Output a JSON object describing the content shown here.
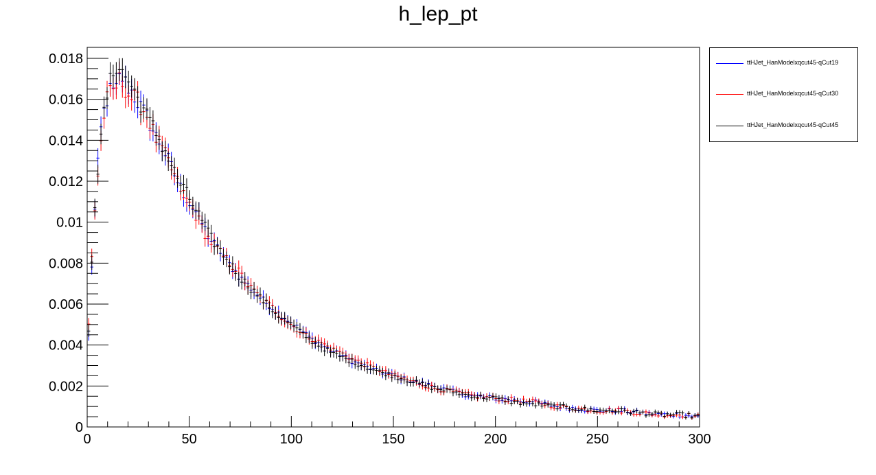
{
  "chart_data": {
    "type": "scatter",
    "title": "h_lep_pt",
    "xlabel": "",
    "ylabel": "",
    "xlim": [
      0,
      300
    ],
    "ylim": [
      0,
      0.0185
    ],
    "xticks": [
      "0",
      "50",
      "100",
      "150",
      "200",
      "250",
      "300"
    ],
    "yticks": [
      "0",
      "0.002",
      "0.004",
      "0.006",
      "0.008",
      "0.01",
      "0.012",
      "0.014",
      "0.016",
      "0.018"
    ],
    "grid": false,
    "legend_position": "top-right outside plot",
    "bin_width": 1.5,
    "x_range_bins": [
      0,
      300
    ],
    "series": [
      {
        "name": "ttHJet_HanModelxqcut45-qCut19",
        "color": "#0000ff",
        "profile": [
          [
            0,
            0.0027
          ],
          [
            1.5,
            0.0062
          ],
          [
            3,
            0.0096
          ],
          [
            4.5,
            0.0115
          ],
          [
            6,
            0.014
          ],
          [
            7.5,
            0.015
          ],
          [
            9,
            0.0158
          ],
          [
            10.5,
            0.0162
          ],
          [
            12,
            0.0166
          ],
          [
            13.5,
            0.0161
          ],
          [
            15,
            0.0168
          ],
          [
            16.5,
            0.0172
          ],
          [
            18,
            0.0169
          ],
          [
            21,
            0.0165
          ],
          [
            24,
            0.016
          ],
          [
            27,
            0.0155
          ],
          [
            30,
            0.015
          ],
          [
            33,
            0.0143
          ],
          [
            36,
            0.0138
          ],
          [
            39,
            0.0132
          ],
          [
            42,
            0.0125
          ],
          [
            45,
            0.0118
          ],
          [
            48,
            0.0113
          ],
          [
            51,
            0.0108
          ],
          [
            54,
            0.0104
          ],
          [
            57,
            0.0098
          ],
          [
            60,
            0.0092
          ],
          [
            63,
            0.0088
          ],
          [
            66,
            0.0085
          ],
          [
            69,
            0.008
          ],
          [
            72,
            0.0077
          ],
          [
            75,
            0.0073
          ],
          [
            78,
            0.007
          ],
          [
            81,
            0.0067
          ],
          [
            84,
            0.0064
          ],
          [
            87,
            0.0061
          ],
          [
            90,
            0.0059
          ],
          [
            93,
            0.0056
          ],
          [
            96,
            0.0054
          ],
          [
            100,
            0.0051
          ],
          [
            105,
            0.0047
          ],
          [
            110,
            0.0043
          ],
          [
            115,
            0.004
          ],
          [
            120,
            0.0037
          ],
          [
            125,
            0.0035
          ],
          [
            130,
            0.0032
          ],
          [
            135,
            0.003
          ],
          [
            140,
            0.0028
          ],
          [
            150,
            0.0025
          ],
          [
            160,
            0.0022
          ],
          [
            170,
            0.002
          ],
          [
            180,
            0.0017
          ],
          [
            190,
            0.0015
          ],
          [
            200,
            0.0014
          ],
          [
            210,
            0.0013
          ],
          [
            220,
            0.0012
          ],
          [
            230,
            0.001
          ],
          [
            240,
            0.0009
          ],
          [
            250,
            0.0008
          ],
          [
            260,
            0.0008
          ],
          [
            270,
            0.0007
          ],
          [
            280,
            0.0006
          ],
          [
            290,
            0.0006
          ],
          [
            300,
            0.0005
          ]
        ]
      },
      {
        "name": "ttHJet_HanModelxqcut45-qCut30",
        "color": "#ff0000",
        "profile": [
          [
            0,
            0.0028
          ],
          [
            1.5,
            0.0072
          ],
          [
            3,
            0.0096
          ],
          [
            4.5,
            0.0116
          ],
          [
            6,
            0.013
          ],
          [
            7.5,
            0.0148
          ],
          [
            9,
            0.0157
          ],
          [
            10.5,
            0.0162
          ],
          [
            12,
            0.0163
          ],
          [
            13.5,
            0.0165
          ],
          [
            15,
            0.0168
          ],
          [
            16.5,
            0.017
          ],
          [
            18,
            0.0167
          ],
          [
            21,
            0.0161
          ],
          [
            24,
            0.016
          ],
          [
            27,
            0.0156
          ],
          [
            30,
            0.0151
          ],
          [
            33,
            0.0142
          ],
          [
            36,
            0.0137
          ],
          [
            39,
            0.0131
          ],
          [
            42,
            0.0124
          ],
          [
            45,
            0.0118
          ],
          [
            48,
            0.0112
          ],
          [
            51,
            0.0108
          ],
          [
            54,
            0.0102
          ],
          [
            57,
            0.0096
          ],
          [
            60,
            0.0091
          ],
          [
            63,
            0.0088
          ],
          [
            66,
            0.0084
          ],
          [
            69,
            0.0081
          ],
          [
            72,
            0.0078
          ],
          [
            75,
            0.0075
          ],
          [
            78,
            0.007
          ],
          [
            81,
            0.0067
          ],
          [
            84,
            0.0064
          ],
          [
            87,
            0.0061
          ],
          [
            90,
            0.0059
          ],
          [
            93,
            0.0056
          ],
          [
            96,
            0.0053
          ],
          [
            100,
            0.005
          ],
          [
            105,
            0.0046
          ],
          [
            110,
            0.0043
          ],
          [
            115,
            0.0041
          ],
          [
            120,
            0.0038
          ],
          [
            125,
            0.0036
          ],
          [
            130,
            0.0033
          ],
          [
            135,
            0.0031
          ],
          [
            140,
            0.0029
          ],
          [
            150,
            0.0025
          ],
          [
            160,
            0.0022
          ],
          [
            170,
            0.0019
          ],
          [
            180,
            0.0017
          ],
          [
            190,
            0.0015
          ],
          [
            200,
            0.0014
          ],
          [
            210,
            0.0013
          ],
          [
            220,
            0.0012
          ],
          [
            230,
            0.001
          ],
          [
            240,
            0.0009
          ],
          [
            250,
            0.0008
          ],
          [
            260,
            0.0008
          ],
          [
            270,
            0.0007
          ],
          [
            280,
            0.0006
          ],
          [
            290,
            0.0006
          ],
          [
            300,
            0.0005
          ]
        ]
      },
      {
        "name": "ttHJet_HanModelxqcut45-qCut45",
        "color": "#000000",
        "profile": [
          [
            0,
            0.0028
          ],
          [
            1.5,
            0.0064
          ],
          [
            3,
            0.01
          ],
          [
            4.5,
            0.012
          ],
          [
            6,
            0.0131
          ],
          [
            7.5,
            0.0148
          ],
          [
            9,
            0.0159
          ],
          [
            10.5,
            0.0165
          ],
          [
            12,
            0.0171
          ],
          [
            13.5,
            0.0176
          ],
          [
            15,
            0.0178
          ],
          [
            16.5,
            0.0174
          ],
          [
            18,
            0.0172
          ],
          [
            21,
            0.0168
          ],
          [
            24,
            0.0162
          ],
          [
            27,
            0.0157
          ],
          [
            30,
            0.015
          ],
          [
            33,
            0.0145
          ],
          [
            36,
            0.0139
          ],
          [
            39,
            0.0133
          ],
          [
            42,
            0.0126
          ],
          [
            45,
            0.012
          ],
          [
            48,
            0.0115
          ],
          [
            51,
            0.011
          ],
          [
            54,
            0.0105
          ],
          [
            57,
            0.0099
          ],
          [
            60,
            0.0093
          ],
          [
            63,
            0.0089
          ],
          [
            66,
            0.0085
          ],
          [
            69,
            0.0081
          ],
          [
            72,
            0.0077
          ],
          [
            75,
            0.0073
          ],
          [
            78,
            0.007
          ],
          [
            81,
            0.0067
          ],
          [
            84,
            0.0064
          ],
          [
            87,
            0.0061
          ],
          [
            90,
            0.0058
          ],
          [
            93,
            0.0055
          ],
          [
            96,
            0.0053
          ],
          [
            100,
            0.005
          ],
          [
            105,
            0.0046
          ],
          [
            110,
            0.0042
          ],
          [
            115,
            0.0039
          ],
          [
            120,
            0.0036
          ],
          [
            125,
            0.0034
          ],
          [
            130,
            0.0032
          ],
          [
            135,
            0.003
          ],
          [
            140,
            0.0028
          ],
          [
            150,
            0.0025
          ],
          [
            160,
            0.0022
          ],
          [
            170,
            0.0019
          ],
          [
            180,
            0.0017
          ],
          [
            190,
            0.0015
          ],
          [
            200,
            0.0014
          ],
          [
            210,
            0.0012
          ],
          [
            220,
            0.0011
          ],
          [
            230,
            0.001
          ],
          [
            240,
            0.0009
          ],
          [
            250,
            0.0008
          ],
          [
            260,
            0.0008
          ],
          [
            270,
            0.0007
          ],
          [
            280,
            0.0006
          ],
          [
            290,
            0.0006
          ],
          [
            300,
            0.0005
          ]
        ]
      }
    ]
  }
}
